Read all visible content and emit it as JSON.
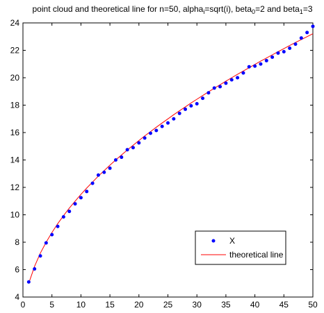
{
  "chart_data": {
    "type": "scatter",
    "title": {
      "prefix": "point cloud and theoretical line for n=50, alpha",
      "sub1": "i",
      "mid1": "=sqrt(i), beta",
      "sub2": "0",
      "mid2": "=2 and beta",
      "sub3": "1",
      "suffix": "=3"
    },
    "xlabel": "",
    "ylabel": "",
    "xlim": [
      0,
      50
    ],
    "ylim": [
      4,
      24
    ],
    "xticks": [
      0,
      5,
      10,
      15,
      20,
      25,
      30,
      35,
      40,
      45,
      50
    ],
    "yticks": [
      4,
      6,
      8,
      10,
      12,
      14,
      16,
      18,
      20,
      22,
      24
    ],
    "grid": false,
    "legend_position": "bottom-right",
    "series": [
      {
        "name": "X",
        "kind": "points",
        "color": "#0000ff",
        "x": [
          1,
          2,
          3,
          4,
          5,
          6,
          7,
          8,
          9,
          10,
          11,
          12,
          13,
          14,
          15,
          16,
          17,
          18,
          19,
          20,
          21,
          22,
          23,
          24,
          25,
          26,
          27,
          28,
          29,
          30,
          31,
          32,
          33,
          34,
          35,
          36,
          37,
          38,
          39,
          40,
          41,
          42,
          43,
          44,
          45,
          46,
          47,
          48,
          49,
          50
        ],
        "y": [
          5.1,
          6.05,
          7.0,
          7.95,
          8.55,
          9.15,
          9.85,
          10.25,
          10.8,
          11.25,
          11.7,
          12.3,
          12.9,
          13.1,
          13.4,
          14.0,
          14.2,
          14.75,
          14.9,
          15.25,
          15.6,
          15.95,
          16.15,
          16.45,
          16.7,
          17.0,
          17.4,
          17.7,
          17.95,
          18.1,
          18.5,
          18.9,
          19.25,
          19.35,
          19.6,
          19.85,
          20.0,
          20.35,
          20.8,
          20.85,
          21.0,
          21.25,
          21.5,
          21.8,
          21.9,
          22.15,
          22.45,
          22.9,
          23.3,
          23.75
        ]
      },
      {
        "name": "theoretical line",
        "kind": "line",
        "color": "#ff0000",
        "x": [
          1,
          2,
          3,
          4,
          5,
          6,
          7,
          8,
          9,
          10,
          11,
          12,
          13,
          14,
          15,
          16,
          17,
          18,
          19,
          20,
          21,
          22,
          23,
          24,
          25,
          26,
          27,
          28,
          29,
          30,
          31,
          32,
          33,
          34,
          35,
          36,
          37,
          38,
          39,
          40,
          41,
          42,
          43,
          44,
          45,
          46,
          47,
          48,
          49,
          50
        ],
        "y": [
          5.0,
          6.24,
          7.2,
          8.0,
          8.71,
          9.35,
          9.94,
          10.49,
          11.0,
          11.49,
          11.95,
          12.39,
          12.82,
          13.22,
          13.62,
          14.0,
          14.37,
          14.73,
          15.08,
          15.42,
          15.75,
          16.07,
          16.39,
          16.7,
          17.0,
          17.3,
          17.59,
          17.87,
          18.16,
          18.43,
          18.7,
          18.97,
          19.23,
          19.49,
          19.75,
          20.0,
          20.25,
          20.49,
          20.73,
          20.97,
          21.21,
          21.44,
          21.67,
          21.9,
          22.12,
          22.35,
          22.57,
          22.78,
          23.0,
          23.21
        ]
      }
    ]
  }
}
